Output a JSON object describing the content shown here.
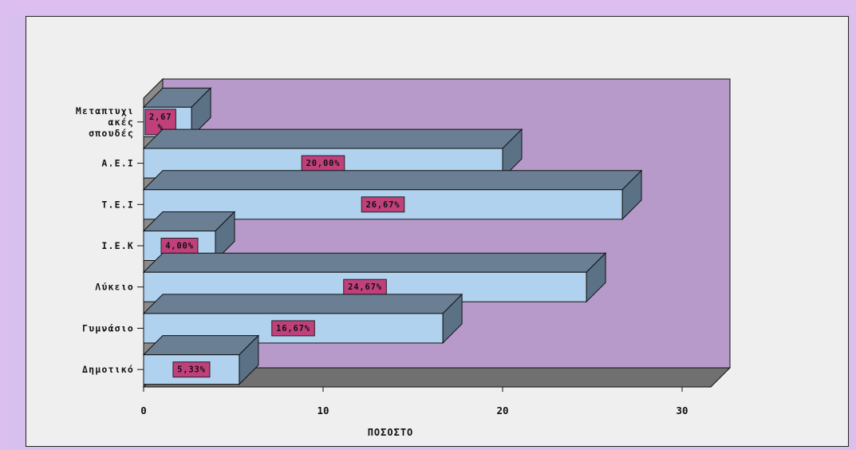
{
  "chart_data": {
    "type": "bar",
    "orientation": "horizontal",
    "style": "3d",
    "categories": [
      "Μεταπτυχιακές σπουδές",
      "Α.Ε.Ι",
      "Τ.Ε.Ι",
      "Ι.Ε.Κ",
      "Λύκειο",
      "Γυμνάσιο",
      "Δημοτικό"
    ],
    "category_lines": [
      [
        "Μεταπτυχι",
        "ακές",
        "σπουδές"
      ],
      [
        "Α.Ε.Ι"
      ],
      [
        "Τ.Ε.Ι"
      ],
      [
        "Ι.Ε.Κ"
      ],
      [
        "Λύκειο"
      ],
      [
        "Γυμνάσιο"
      ],
      [
        "Δημοτικό"
      ]
    ],
    "values": [
      2.67,
      20.0,
      26.67,
      4.0,
      24.67,
      16.67,
      5.33
    ],
    "data_labels": [
      [
        "2,67",
        "%"
      ],
      [
        "20,00%"
      ],
      [
        "26,67%"
      ],
      [
        "4,00%"
      ],
      [
        "24,67%"
      ],
      [
        "16,67%"
      ],
      [
        "5,33%"
      ]
    ],
    "xlabel": "ΠΟΣΟΣΤΟ",
    "ylabel": "",
    "xlim": [
      0,
      30
    ],
    "xticks": [
      "0",
      "10",
      "20",
      "30"
    ],
    "colors": {
      "bar_front": "#b0d2ee",
      "bar_top": "#6a7f94",
      "bar_side": "#5b7186",
      "back_wall": "#b89aca",
      "floor": "#707070",
      "left_wall": "#8a8a8a",
      "label_bg": "#c0407c"
    }
  }
}
